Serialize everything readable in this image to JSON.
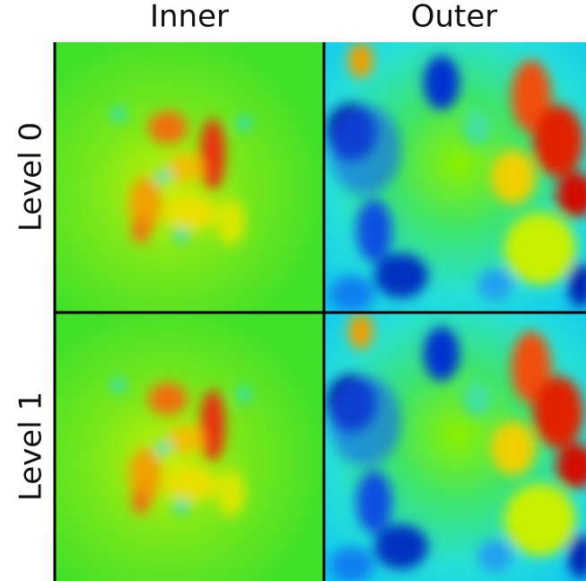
{
  "columns": [
    "Inner",
    "Outer"
  ],
  "rows": [
    "Level 0",
    "Level 1"
  ]
}
